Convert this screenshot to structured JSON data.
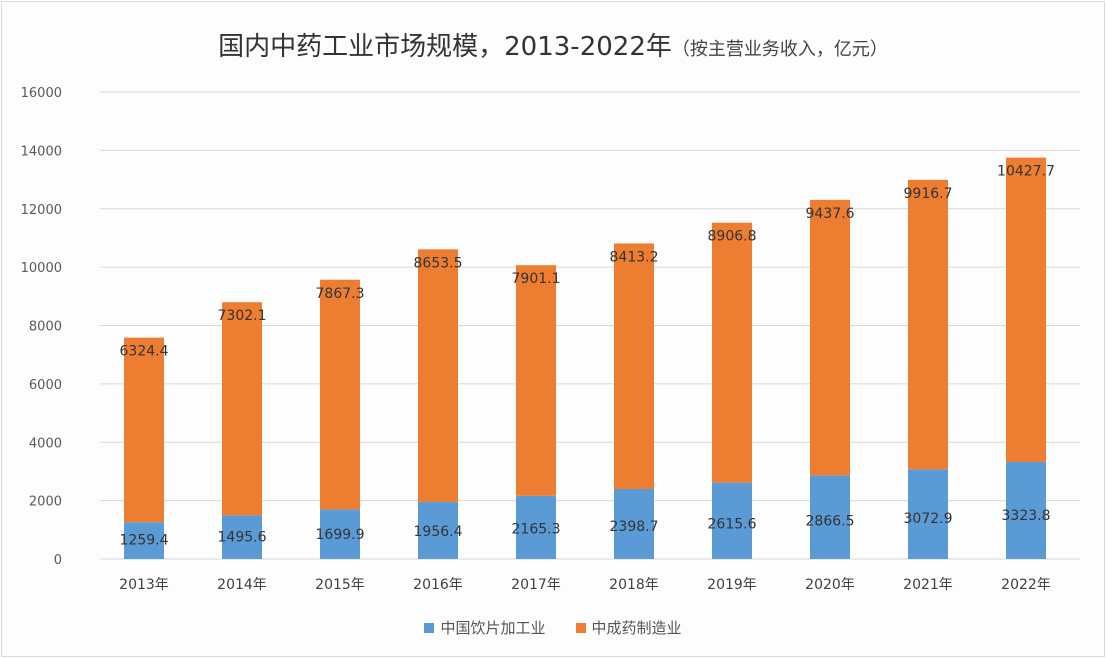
{
  "chart_data": {
    "type": "bar",
    "stacked": true,
    "title": "国内中药工业市场规模，2013-2022年",
    "subtitle": "（按主营业务收入，亿元）",
    "xlabel": "",
    "ylabel": "",
    "ylim": [
      0,
      16000
    ],
    "yticks": [
      0,
      2000,
      4000,
      6000,
      8000,
      10000,
      12000,
      14000,
      16000
    ],
    "grid": true,
    "legend_position": "bottom",
    "categories": [
      "2013年",
      "2014年",
      "2015年",
      "2016年",
      "2017年",
      "2018年",
      "2019年",
      "2020年",
      "2021年",
      "2022年"
    ],
    "series": [
      {
        "name": "中国饮片加工业",
        "color": "#5b9bd5",
        "values": [
          1259.4,
          1495.6,
          1699.9,
          1956.4,
          2165.3,
          2398.7,
          2615.6,
          2866.5,
          3072.9,
          3323.8
        ]
      },
      {
        "name": "中成药制造业",
        "color": "#ed7d31",
        "values": [
          6324.4,
          7302.1,
          7867.3,
          8653.5,
          7901.1,
          8413.2,
          8906.8,
          9437.6,
          9916.7,
          10427.7
        ]
      }
    ]
  }
}
